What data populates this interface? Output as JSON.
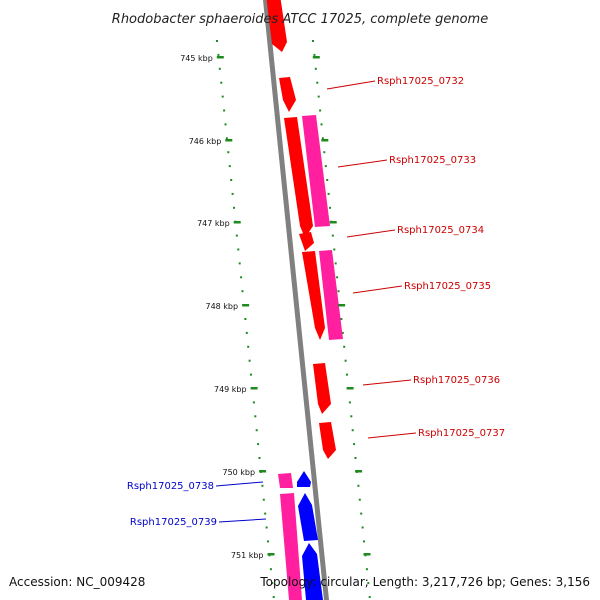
{
  "title": "Rhodobacter sphaeroides ATCC 17025, complete genome",
  "footer": {
    "accession": "Accession: NC_009428",
    "topology": "Topology: circular; Length: 3,217,726 bp; Genes: 3,156"
  },
  "colors": {
    "backbone": "#808080",
    "tick": "#1f8a1f",
    "cds_forward": "#ff0000",
    "gene_forward": "#ff1f9f",
    "cds_reverse": "#0000ff",
    "label_forward": "#cc0000",
    "label_reverse": "#0000cc"
  },
  "scale_labels": [
    "745 kbp",
    "746 kbp",
    "747 kbp",
    "748 kbp",
    "749 kbp",
    "750 kbp",
    "751 kbp"
  ],
  "forward_genes": [
    {
      "label": "Rsph17025_0732"
    },
    {
      "label": "Rsph17025_0733"
    },
    {
      "label": "Rsph17025_0734"
    },
    {
      "label": "Rsph17025_0735"
    },
    {
      "label": "Rsph17025_0736"
    },
    {
      "label": "Rsph17025_0737"
    }
  ],
  "reverse_genes": [
    {
      "label": "Rsph17025_0738"
    },
    {
      "label": "Rsph17025_0739"
    }
  ]
}
